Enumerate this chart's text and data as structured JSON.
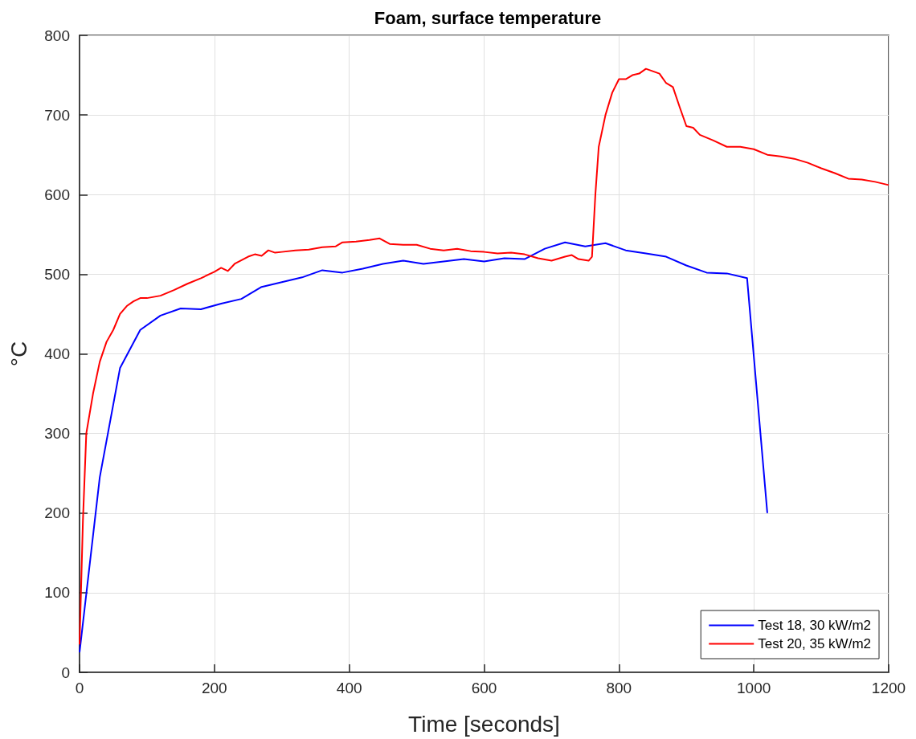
{
  "chart_data": {
    "type": "line",
    "title": "Foam, surface temperature",
    "xlabel": "Time [seconds]",
    "ylabel": "°C",
    "xlim": [
      0,
      1200
    ],
    "xticks": [
      0,
      200,
      400,
      600,
      800,
      1000,
      1200
    ],
    "ylim": [
      0,
      800
    ],
    "yticks": [
      0,
      100,
      200,
      300,
      400,
      500,
      600,
      700,
      800
    ],
    "grid": true,
    "legend": "bottom right",
    "marker": "none",
    "line_style": "solid",
    "series": [
      {
        "name": "Test 18, 30 kW/m2",
        "color": "#0000ff",
        "x": [
          0,
          30,
          60,
          90,
          120,
          150,
          180,
          210,
          240,
          270,
          300,
          330,
          360,
          390,
          420,
          450,
          480,
          510,
          540,
          570,
          600,
          630,
          660,
          690,
          720,
          750,
          780,
          810,
          840,
          870,
          900,
          930,
          960,
          990,
          1020
        ],
        "values": [
          25,
          245,
          382,
          430,
          448,
          457,
          456,
          463,
          469,
          484,
          490,
          496,
          505,
          502,
          507,
          513,
          517,
          513,
          516,
          519,
          516,
          520,
          519,
          532,
          540,
          535,
          539,
          530,
          526,
          522,
          511,
          502,
          501,
          495,
          200
        ]
      },
      {
        "name": "Test 20, 35 kW/m2",
        "color": "#ff0000",
        "x": [
          0,
          5,
          10,
          20,
          30,
          40,
          50,
          60,
          70,
          80,
          90,
          100,
          120,
          140,
          160,
          180,
          200,
          210,
          220,
          230,
          250,
          260,
          270,
          280,
          290,
          300,
          320,
          340,
          360,
          380,
          390,
          410,
          430,
          445,
          460,
          480,
          500,
          520,
          540,
          560,
          580,
          600,
          620,
          640,
          660,
          680,
          700,
          720,
          730,
          740,
          755,
          760,
          765,
          770,
          780,
          790,
          800,
          810,
          820,
          830,
          840,
          850,
          860,
          870,
          880,
          890,
          900,
          910,
          920,
          940,
          960,
          980,
          1000,
          1020,
          1040,
          1060,
          1080,
          1100,
          1120,
          1140,
          1160,
          1180,
          1200
        ],
        "values": [
          35,
          190,
          300,
          350,
          390,
          415,
          430,
          450,
          460,
          466,
          470,
          470,
          473,
          480,
          488,
          495,
          503,
          508,
          504,
          513,
          522,
          525,
          523,
          530,
          527,
          528,
          530,
          531,
          534,
          535,
          540,
          541,
          543,
          545,
          538,
          537,
          537,
          532,
          530,
          532,
          529,
          528,
          526,
          527,
          525,
          520,
          517,
          522,
          524,
          519,
          517,
          522,
          600,
          660,
          700,
          728,
          745,
          745,
          750,
          752,
          758,
          755,
          752,
          740,
          735,
          710,
          686,
          684,
          675,
          668,
          660,
          660,
          657,
          650,
          648,
          645,
          640,
          633,
          627,
          620,
          619,
          616,
          612
        ]
      }
    ]
  }
}
